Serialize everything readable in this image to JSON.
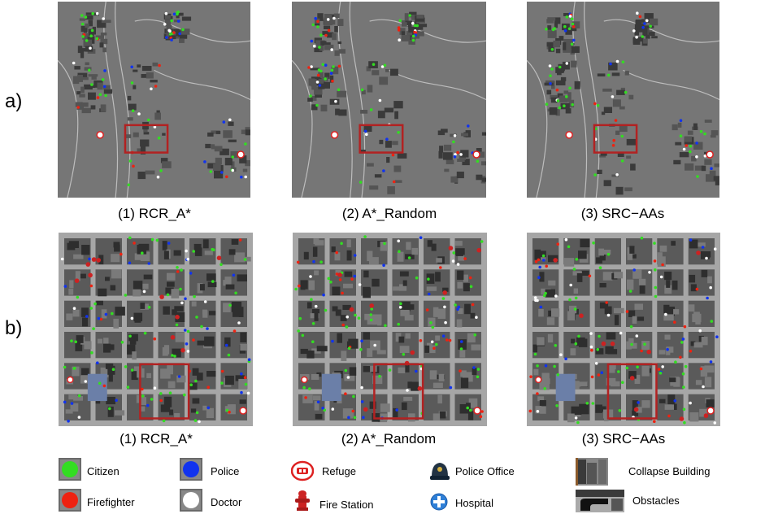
{
  "rows": [
    {
      "label": "a)",
      "captions": [
        "(1) RCR_A*",
        "(2) A*_Random",
        "(3) SRC−AAs"
      ]
    },
    {
      "label": "b)",
      "captions": [
        "(1) RCR_A*",
        "(2) A*_Random",
        "(3) SRC−AAs"
      ]
    }
  ],
  "legend": [
    {
      "label": "Citizen",
      "icon": "citizen-square-icon",
      "color": "#33dd22"
    },
    {
      "label": "Firefighter",
      "icon": "firefighter-square-icon",
      "color": "#ee2211"
    },
    {
      "label": "Police",
      "icon": "police-square-icon",
      "color": "#1133ee"
    },
    {
      "label": "Doctor",
      "icon": "doctor-square-icon",
      "color": "#ffffff"
    },
    {
      "label": "Refuge",
      "icon": "refuge-icon",
      "color": "#dd2222"
    },
    {
      "label": "Fire Station",
      "icon": "fire-hydrant-icon",
      "color": "#cc2222"
    },
    {
      "label": "Police Office",
      "icon": "police-helmet-icon",
      "color": "#223344"
    },
    {
      "label": "Hospital",
      "icon": "hospital-cross-icon",
      "color": "#2f7fd6"
    },
    {
      "label": "Collapse Building",
      "icon": "collapse-building-icon",
      "color": "#555555"
    },
    {
      "label": "Obstacles",
      "icon": "obstacles-icon",
      "color": "#222222"
    }
  ],
  "colors": {
    "map_bg": "#777777",
    "road": "#aaaaaa",
    "building": "#3a3a3a",
    "highlight_box": "#b22222"
  }
}
